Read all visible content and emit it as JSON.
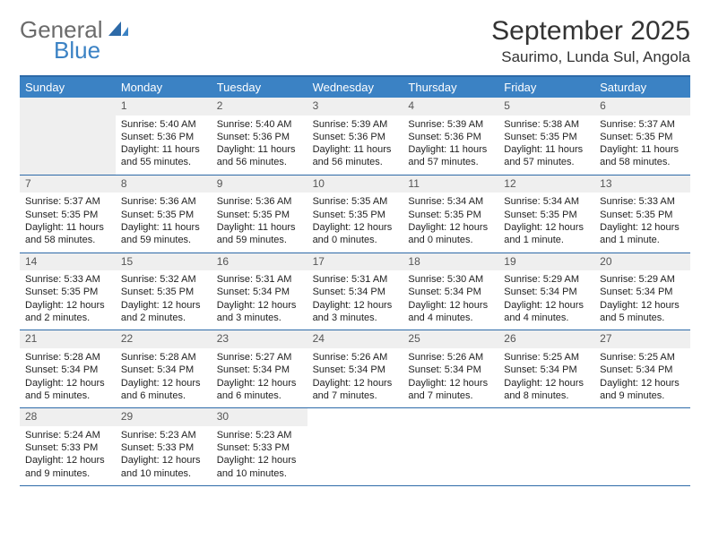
{
  "brand": {
    "word1": "General",
    "word2": "Blue"
  },
  "title": "September 2025",
  "location": "Saurimo, Lunda Sul, Angola",
  "colors": {
    "header_bg": "#3b82c4",
    "header_border": "#2d6aa8",
    "daynum_bg": "#efefef",
    "logo_gray": "#6b6b6b",
    "logo_blue": "#3b82c4"
  },
  "day_names": [
    "Sunday",
    "Monday",
    "Tuesday",
    "Wednesday",
    "Thursday",
    "Friday",
    "Saturday"
  ],
  "weeks": [
    [
      null,
      {
        "n": "1",
        "sr": "Sunrise: 5:40 AM",
        "ss": "Sunset: 5:36 PM",
        "dl": "Daylight: 11 hours and 55 minutes."
      },
      {
        "n": "2",
        "sr": "Sunrise: 5:40 AM",
        "ss": "Sunset: 5:36 PM",
        "dl": "Daylight: 11 hours and 56 minutes."
      },
      {
        "n": "3",
        "sr": "Sunrise: 5:39 AM",
        "ss": "Sunset: 5:36 PM",
        "dl": "Daylight: 11 hours and 56 minutes."
      },
      {
        "n": "4",
        "sr": "Sunrise: 5:39 AM",
        "ss": "Sunset: 5:36 PM",
        "dl": "Daylight: 11 hours and 57 minutes."
      },
      {
        "n": "5",
        "sr": "Sunrise: 5:38 AM",
        "ss": "Sunset: 5:35 PM",
        "dl": "Daylight: 11 hours and 57 minutes."
      },
      {
        "n": "6",
        "sr": "Sunrise: 5:37 AM",
        "ss": "Sunset: 5:35 PM",
        "dl": "Daylight: 11 hours and 58 minutes."
      }
    ],
    [
      {
        "n": "7",
        "sr": "Sunrise: 5:37 AM",
        "ss": "Sunset: 5:35 PM",
        "dl": "Daylight: 11 hours and 58 minutes."
      },
      {
        "n": "8",
        "sr": "Sunrise: 5:36 AM",
        "ss": "Sunset: 5:35 PM",
        "dl": "Daylight: 11 hours and 59 minutes."
      },
      {
        "n": "9",
        "sr": "Sunrise: 5:36 AM",
        "ss": "Sunset: 5:35 PM",
        "dl": "Daylight: 11 hours and 59 minutes."
      },
      {
        "n": "10",
        "sr": "Sunrise: 5:35 AM",
        "ss": "Sunset: 5:35 PM",
        "dl": "Daylight: 12 hours and 0 minutes."
      },
      {
        "n": "11",
        "sr": "Sunrise: 5:34 AM",
        "ss": "Sunset: 5:35 PM",
        "dl": "Daylight: 12 hours and 0 minutes."
      },
      {
        "n": "12",
        "sr": "Sunrise: 5:34 AM",
        "ss": "Sunset: 5:35 PM",
        "dl": "Daylight: 12 hours and 1 minute."
      },
      {
        "n": "13",
        "sr": "Sunrise: 5:33 AM",
        "ss": "Sunset: 5:35 PM",
        "dl": "Daylight: 12 hours and 1 minute."
      }
    ],
    [
      {
        "n": "14",
        "sr": "Sunrise: 5:33 AM",
        "ss": "Sunset: 5:35 PM",
        "dl": "Daylight: 12 hours and 2 minutes."
      },
      {
        "n": "15",
        "sr": "Sunrise: 5:32 AM",
        "ss": "Sunset: 5:35 PM",
        "dl": "Daylight: 12 hours and 2 minutes."
      },
      {
        "n": "16",
        "sr": "Sunrise: 5:31 AM",
        "ss": "Sunset: 5:34 PM",
        "dl": "Daylight: 12 hours and 3 minutes."
      },
      {
        "n": "17",
        "sr": "Sunrise: 5:31 AM",
        "ss": "Sunset: 5:34 PM",
        "dl": "Daylight: 12 hours and 3 minutes."
      },
      {
        "n": "18",
        "sr": "Sunrise: 5:30 AM",
        "ss": "Sunset: 5:34 PM",
        "dl": "Daylight: 12 hours and 4 minutes."
      },
      {
        "n": "19",
        "sr": "Sunrise: 5:29 AM",
        "ss": "Sunset: 5:34 PM",
        "dl": "Daylight: 12 hours and 4 minutes."
      },
      {
        "n": "20",
        "sr": "Sunrise: 5:29 AM",
        "ss": "Sunset: 5:34 PM",
        "dl": "Daylight: 12 hours and 5 minutes."
      }
    ],
    [
      {
        "n": "21",
        "sr": "Sunrise: 5:28 AM",
        "ss": "Sunset: 5:34 PM",
        "dl": "Daylight: 12 hours and 5 minutes."
      },
      {
        "n": "22",
        "sr": "Sunrise: 5:28 AM",
        "ss": "Sunset: 5:34 PM",
        "dl": "Daylight: 12 hours and 6 minutes."
      },
      {
        "n": "23",
        "sr": "Sunrise: 5:27 AM",
        "ss": "Sunset: 5:34 PM",
        "dl": "Daylight: 12 hours and 6 minutes."
      },
      {
        "n": "24",
        "sr": "Sunrise: 5:26 AM",
        "ss": "Sunset: 5:34 PM",
        "dl": "Daylight: 12 hours and 7 minutes."
      },
      {
        "n": "25",
        "sr": "Sunrise: 5:26 AM",
        "ss": "Sunset: 5:34 PM",
        "dl": "Daylight: 12 hours and 7 minutes."
      },
      {
        "n": "26",
        "sr": "Sunrise: 5:25 AM",
        "ss": "Sunset: 5:34 PM",
        "dl": "Daylight: 12 hours and 8 minutes."
      },
      {
        "n": "27",
        "sr": "Sunrise: 5:25 AM",
        "ss": "Sunset: 5:34 PM",
        "dl": "Daylight: 12 hours and 9 minutes."
      }
    ],
    [
      {
        "n": "28",
        "sr": "Sunrise: 5:24 AM",
        "ss": "Sunset: 5:33 PM",
        "dl": "Daylight: 12 hours and 9 minutes."
      },
      {
        "n": "29",
        "sr": "Sunrise: 5:23 AM",
        "ss": "Sunset: 5:33 PM",
        "dl": "Daylight: 12 hours and 10 minutes."
      },
      {
        "n": "30",
        "sr": "Sunrise: 5:23 AM",
        "ss": "Sunset: 5:33 PM",
        "dl": "Daylight: 12 hours and 10 minutes."
      },
      null,
      null,
      null,
      null
    ]
  ]
}
